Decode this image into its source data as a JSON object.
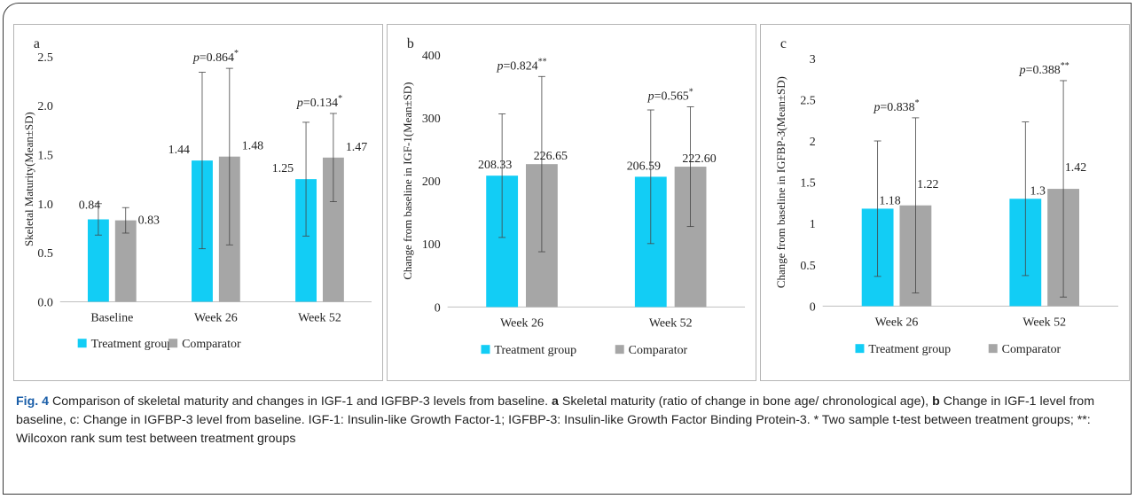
{
  "colors": {
    "treatment": "#12cdf5",
    "comparator": "#a6a6a6",
    "axis": "#bfbfbf",
    "error": "#444444",
    "text": "#222222"
  },
  "legend": {
    "treatment": "Treatment group",
    "comparator": "Comparator"
  },
  "chart_data": [
    {
      "type": "bar",
      "panel_label": "a",
      "ylabel": "Skeletal Maturity(Mean±SD)",
      "ylim": [
        0,
        2.5
      ],
      "yticks": [
        "0.0",
        "0.5",
        "1.0",
        "1.5",
        "2.0",
        "2.5"
      ],
      "ytick_values": [
        0,
        0.5,
        1.0,
        1.5,
        2.0,
        2.5
      ],
      "categories": [
        "Baseline",
        "Week 26",
        "Week 52"
      ],
      "series": [
        {
          "name": "Treatment group",
          "values": [
            0.84,
            1.44,
            1.25
          ],
          "labels": [
            "0.84",
            "1.44",
            "1.25"
          ],
          "sd": [
            0.16,
            0.9,
            0.58
          ]
        },
        {
          "name": "Comparator",
          "values": [
            0.83,
            1.48,
            1.47
          ],
          "labels": [
            "0.83",
            "1.48",
            "1.47"
          ],
          "sd": [
            0.13,
            0.9,
            0.45
          ]
        }
      ],
      "pvalues": [
        {
          "category": 1,
          "p": "=0.864",
          "mark": "*"
        },
        {
          "category": 2,
          "p": "=0.134",
          "mark": "*"
        }
      ],
      "legend_position": "bottom"
    },
    {
      "type": "bar",
      "panel_label": "b",
      "ylabel": "Change from baseline in IGF-1(Mean±SD)",
      "ylim": [
        0,
        400
      ],
      "yticks": [
        "0",
        "100",
        "200",
        "300",
        "400"
      ],
      "ytick_values": [
        0,
        100,
        200,
        300,
        400
      ],
      "categories": [
        "Week 26",
        "Week 52"
      ],
      "series": [
        {
          "name": "Treatment group",
          "values": [
            208.33,
            206.59
          ],
          "labels": [
            "208.33",
            "206.59"
          ],
          "sd": [
            98,
            106
          ]
        },
        {
          "name": "Comparator",
          "values": [
            226.65,
            222.6
          ],
          "labels": [
            "226.65",
            "222.60"
          ],
          "sd": [
            139,
            95
          ]
        }
      ],
      "pvalues": [
        {
          "category": 0,
          "p": "=0.824",
          "mark": "**"
        },
        {
          "category": 1,
          "p": "=0.565",
          "mark": "*"
        }
      ],
      "legend_position": "bottom"
    },
    {
      "type": "bar",
      "panel_label": "c",
      "ylabel": "Change from baseline in IGFBP-3(Mean±SD)",
      "ylim": [
        0,
        3
      ],
      "yticks": [
        "0",
        "0.5",
        "1",
        "1.5",
        "2",
        "2.5",
        "3"
      ],
      "ytick_values": [
        0,
        0.5,
        1,
        1.5,
        2,
        2.5,
        3
      ],
      "categories": [
        "Week 26",
        "Week 52"
      ],
      "series": [
        {
          "name": "Treatment group",
          "values": [
            1.18,
            1.3
          ],
          "labels": [
            "1.18",
            "1.3"
          ],
          "sd": [
            0.82,
            0.93
          ]
        },
        {
          "name": "Comparator",
          "values": [
            1.22,
            1.42
          ],
          "labels": [
            "1.22",
            "1.42"
          ],
          "sd": [
            1.06,
            1.31
          ]
        }
      ],
      "pvalues": [
        {
          "category": 0,
          "p": "=0.838",
          "mark": "*"
        },
        {
          "category": 1,
          "p": "=0.388",
          "mark": "**"
        }
      ],
      "legend_position": "bottom"
    }
  ],
  "caption": {
    "label": "Fig. 4",
    "title": " Comparison of skeletal maturity and changes in IGF-1 and IGFBP-3 levels from baseline. ",
    "a": "a",
    "a_text": " Skeletal maturity (ratio of change in bone age/ chronological age), ",
    "b": "b",
    "rest": " Change in IGF-1 level from baseline, c: Change in IGFBP-3 level from baseline. IGF-1: Insulin-like Growth Factor-1; IGFBP-3: Insulin-like Growth Factor Binding Protein-3. * Two sample t-test between treatment groups; **: Wilcoxon rank sum test between treatment groups"
  }
}
